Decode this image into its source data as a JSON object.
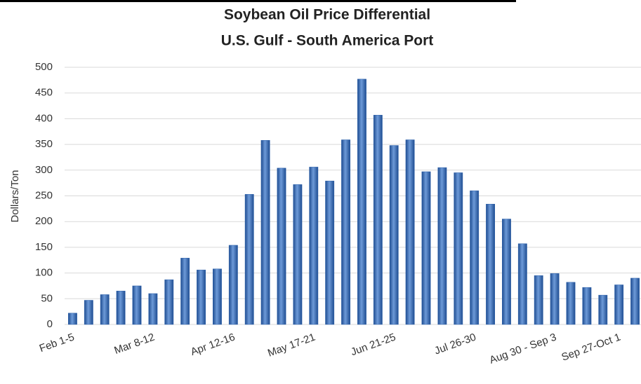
{
  "chart_data": {
    "type": "bar",
    "title": "Soybean Oil Price Differential",
    "subtitle": "U.S. Gulf - South America Port",
    "y_label": "Dollars/Ton",
    "categories": [
      "Feb 1-5",
      null,
      null,
      null,
      null,
      "Mar 8-12",
      null,
      null,
      null,
      null,
      "Apr 12-16",
      null,
      null,
      null,
      null,
      "May 17-21",
      null,
      null,
      null,
      null,
      "Jun 21-25",
      null,
      null,
      null,
      null,
      "Jul 26-30",
      null,
      null,
      null,
      null,
      "Aug 30 - Sep 3",
      null,
      null,
      null,
      "Sep 27-Oct 1",
      null
    ],
    "values": [
      22,
      47,
      58,
      65,
      75,
      60,
      87,
      129,
      106,
      108,
      154,
      253,
      358,
      304,
      272,
      306,
      279,
      359,
      477,
      407,
      348,
      359,
      297,
      305,
      295,
      260,
      234,
      205,
      157,
      95,
      99,
      82,
      72,
      57,
      77,
      90
    ],
    "color": "#2f63ad",
    "ylim": [
      0,
      500
    ],
    "yticks": [
      0,
      50,
      100,
      150,
      200,
      250,
      300,
      350,
      400,
      450,
      500
    ],
    "grid": true
  }
}
